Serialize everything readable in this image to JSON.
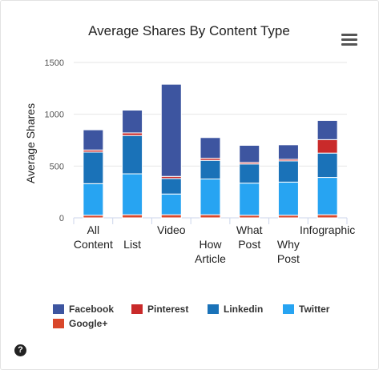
{
  "menu": {
    "icon": "hamburger-menu-icon"
  },
  "help": {
    "icon": "help-circle-icon",
    "glyph": "?"
  },
  "chart_data": {
    "type": "bar",
    "stacked": true,
    "title": "Average Shares By Content Type",
    "xlabel": "",
    "ylabel": "Average Shares",
    "ylim": [
      0,
      1500
    ],
    "yticks": [
      0,
      500,
      1000,
      1500
    ],
    "grid": true,
    "legend_position": "bottom",
    "categories": [
      [
        "All",
        "Content"
      ],
      [
        "",
        "List"
      ],
      [
        "Video"
      ],
      [
        "",
        "How",
        "Article"
      ],
      [
        "What",
        "Post"
      ],
      [
        "",
        "Why",
        "Post"
      ],
      [
        "Infographic"
      ]
    ],
    "series": [
      {
        "name": "Google+",
        "color": "#d9472b",
        "values": [
          25,
          30,
          30,
          30,
          25,
          25,
          30
        ]
      },
      {
        "name": "Twitter",
        "color": "#27a4f2",
        "values": [
          305,
          395,
          200,
          345,
          310,
          320,
          360
        ]
      },
      {
        "name": "Linkedin",
        "color": "#1a72b8",
        "values": [
          305,
          370,
          150,
          180,
          185,
          205,
          235
        ]
      },
      {
        "name": "Pinterest",
        "color": "#c92a2a",
        "values": [
          20,
          25,
          20,
          20,
          15,
          15,
          130
        ]
      },
      {
        "name": "Facebook",
        "color": "#3d55a0",
        "values": [
          195,
          220,
          890,
          200,
          165,
          140,
          185
        ]
      }
    ],
    "legend_order": [
      "Facebook",
      "Pinterest",
      "Linkedin",
      "Twitter",
      "Google+"
    ]
  }
}
